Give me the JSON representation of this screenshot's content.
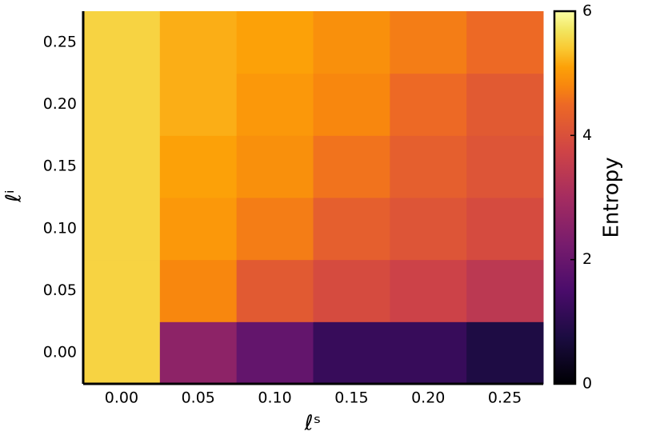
{
  "chart_data": {
    "type": "heatmap",
    "x_label": "ℓˢ",
    "y_label": "ℓⁱ",
    "categories": [
      "0.00",
      "0.05",
      "0.10",
      "0.15",
      "0.20",
      "0.25"
    ],
    "y_categories": [
      "0.00",
      "0.05",
      "0.10",
      "0.15",
      "0.20",
      "0.25"
    ],
    "values": [
      [
        5.5,
        2.6,
        1.9,
        1.2,
        1.2,
        0.8
      ],
      [
        5.5,
        4.8,
        4.2,
        3.9,
        3.7,
        3.4
      ],
      [
        5.5,
        5.0,
        4.7,
        4.3,
        4.1,
        3.9
      ],
      [
        5.5,
        5.1,
        4.9,
        4.6,
        4.3,
        4.1
      ],
      [
        5.5,
        5.2,
        5.0,
        4.8,
        4.5,
        4.2
      ],
      [
        5.5,
        5.2,
        5.1,
        4.9,
        4.7,
        4.5
      ]
    ],
    "colormap": "inferno",
    "zlim": [
      0,
      6
    ],
    "zticks": [
      0,
      2,
      4,
      6
    ],
    "colorbar_label": "Entropy"
  }
}
